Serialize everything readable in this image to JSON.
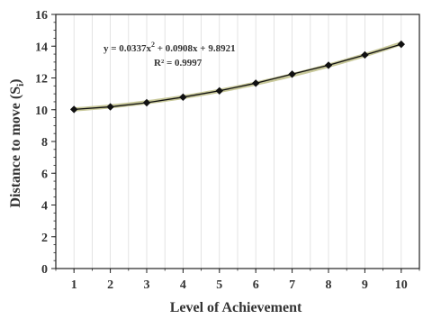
{
  "chart_data": {
    "type": "scatter",
    "xlabel": "Level of Achievement",
    "ylabel_main": "Distance to move (S",
    "ylabel_sub": "i",
    "ylabel_end": ")",
    "xlim": [
      0.5,
      10.5
    ],
    "ylim": [
      0,
      16
    ],
    "xticks": [
      "1",
      "2",
      "3",
      "4",
      "5",
      "6",
      "7",
      "8",
      "9",
      "10"
    ],
    "yticks": [
      "0",
      "2",
      "4",
      "6",
      "8",
      "10",
      "12",
      "14",
      "16"
    ],
    "grid": "vertical",
    "x": [
      1,
      2,
      3,
      4,
      5,
      6,
      7,
      8,
      9,
      10
    ],
    "series": [
      {
        "values": [
          10.02,
          10.18,
          10.44,
          10.79,
          11.19,
          11.67,
          12.24,
          12.8,
          13.45,
          14.12
        ]
      }
    ],
    "trendline": {
      "type": "polynomial",
      "coefficients": [
        0.0337,
        0.0908,
        9.8921
      ],
      "equation_parts": [
        "y = 0.0337x",
        "2",
        " + 0.0908x + 9.8921"
      ],
      "r2_text": "R² = 0.9997"
    },
    "colors": {
      "trendline": "#c8c89a",
      "series": "#111111",
      "axis": "#222222",
      "grid": "#dcdcdc"
    }
  }
}
